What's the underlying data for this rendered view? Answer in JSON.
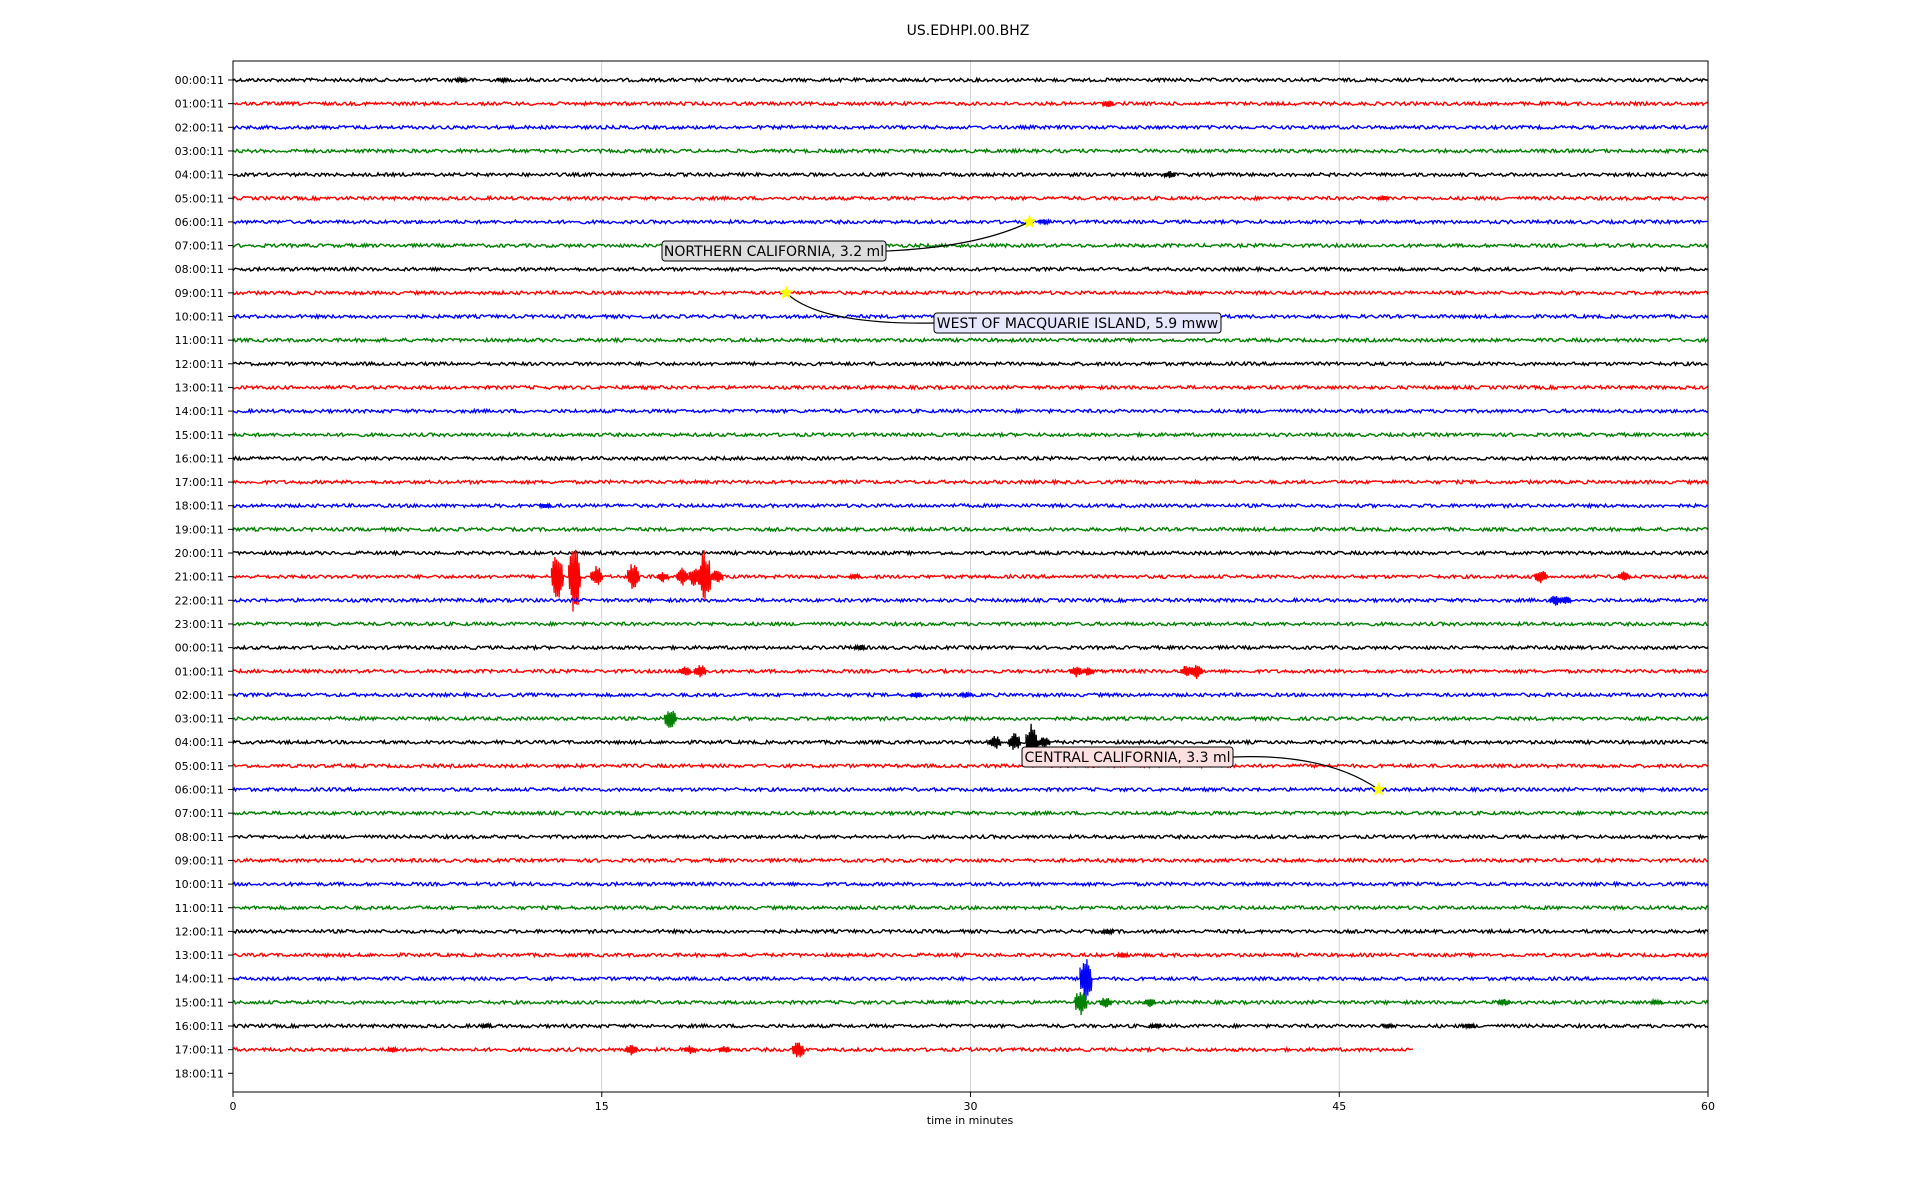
{
  "chart_data": {
    "type": "line",
    "title": "US.EDHPI.00.BHZ",
    "xlabel": "time in minutes",
    "ylabel": "",
    "xlim": [
      0,
      60
    ],
    "xticks": [
      0,
      15,
      30,
      45,
      60
    ],
    "grid_x": true,
    "row_labels": [
      "00:00:11",
      "01:00:11",
      "02:00:11",
      "03:00:11",
      "04:00:11",
      "05:00:11",
      "06:00:11",
      "07:00:11",
      "08:00:11",
      "09:00:11",
      "10:00:11",
      "11:00:11",
      "12:00:11",
      "13:00:11",
      "14:00:11",
      "15:00:11",
      "16:00:11",
      "17:00:11",
      "18:00:11",
      "19:00:11",
      "20:00:11",
      "21:00:11",
      "22:00:11",
      "23:00:11",
      "00:00:11",
      "01:00:11",
      "02:00:11",
      "03:00:11",
      "04:00:11",
      "05:00:11",
      "06:00:11",
      "07:00:11",
      "08:00:11",
      "09:00:11",
      "10:00:11",
      "11:00:11",
      "12:00:11",
      "13:00:11",
      "14:00:11",
      "15:00:11",
      "16:00:11",
      "17:00:11",
      "18:00:11"
    ],
    "trace_colors": [
      "#000000",
      "#ff0000",
      "#0000ff",
      "#008000"
    ],
    "last_trace_end_minute": 48,
    "bursts": [
      {
        "row": 0,
        "t": 9.3,
        "amp": 3
      },
      {
        "row": 0,
        "t": 11.0,
        "amp": 2
      },
      {
        "row": 1,
        "t": 35.6,
        "amp": 4
      },
      {
        "row": 4,
        "t": 38.1,
        "amp": 4
      },
      {
        "row": 5,
        "t": 46.8,
        "amp": 3
      },
      {
        "row": 6,
        "t": 33.0,
        "amp": 3
      },
      {
        "row": 18,
        "t": 12.7,
        "amp": 3
      },
      {
        "row": 21,
        "t": 13.2,
        "amp": 28
      },
      {
        "row": 21,
        "t": 13.9,
        "amp": 44
      },
      {
        "row": 21,
        "t": 14.8,
        "amp": 12
      },
      {
        "row": 21,
        "t": 16.3,
        "amp": 18
      },
      {
        "row": 21,
        "t": 17.5,
        "amp": 6
      },
      {
        "row": 21,
        "t": 18.3,
        "amp": 10
      },
      {
        "row": 21,
        "t": 18.8,
        "amp": 12
      },
      {
        "row": 21,
        "t": 19.2,
        "amp": 30
      },
      {
        "row": 21,
        "t": 19.7,
        "amp": 8
      },
      {
        "row": 21,
        "t": 25.3,
        "amp": 3
      },
      {
        "row": 21,
        "t": 53.2,
        "amp": 8
      },
      {
        "row": 21,
        "t": 56.6,
        "amp": 6
      },
      {
        "row": 22,
        "t": 53.8,
        "amp": 6
      },
      {
        "row": 22,
        "t": 54.2,
        "amp": 5
      },
      {
        "row": 24,
        "t": 25.5,
        "amp": 3
      },
      {
        "row": 25,
        "t": 18.4,
        "amp": 6
      },
      {
        "row": 25,
        "t": 19.0,
        "amp": 8
      },
      {
        "row": 25,
        "t": 34.3,
        "amp": 6
      },
      {
        "row": 25,
        "t": 34.8,
        "amp": 5
      },
      {
        "row": 25,
        "t": 38.8,
        "amp": 7
      },
      {
        "row": 25,
        "t": 39.2,
        "amp": 8
      },
      {
        "row": 26,
        "t": 27.8,
        "amp": 4
      },
      {
        "row": 26,
        "t": 29.8,
        "amp": 3
      },
      {
        "row": 27,
        "t": 17.8,
        "amp": 12
      },
      {
        "row": 28,
        "t": 31.0,
        "amp": 8
      },
      {
        "row": 28,
        "t": 31.8,
        "amp": 10
      },
      {
        "row": 28,
        "t": 32.5,
        "amp": 24
      },
      {
        "row": 28,
        "t": 33.0,
        "amp": 7
      },
      {
        "row": 36,
        "t": 35.6,
        "amp": 3
      },
      {
        "row": 37,
        "t": 36.2,
        "amp": 3
      },
      {
        "row": 38,
        "t": 34.7,
        "amp": 28
      },
      {
        "row": 39,
        "t": 34.5,
        "amp": 16
      },
      {
        "row": 39,
        "t": 35.5,
        "amp": 6
      },
      {
        "row": 39,
        "t": 37.3,
        "amp": 5
      },
      {
        "row": 39,
        "t": 51.7,
        "amp": 4
      },
      {
        "row": 39,
        "t": 57.9,
        "amp": 3
      },
      {
        "row": 40,
        "t": 10.3,
        "amp": 3
      },
      {
        "row": 40,
        "t": 37.5,
        "amp": 3
      },
      {
        "row": 40,
        "t": 47.0,
        "amp": 3
      },
      {
        "row": 40,
        "t": 50.3,
        "amp": 3
      },
      {
        "row": 41,
        "t": 6.5,
        "amp": 3
      },
      {
        "row": 41,
        "t": 16.2,
        "amp": 6
      },
      {
        "row": 41,
        "t": 18.6,
        "amp": 5
      },
      {
        "row": 41,
        "t": 20.0,
        "amp": 4
      },
      {
        "row": 41,
        "t": 23.0,
        "amp": 10
      }
    ],
    "annotations": [
      {
        "text": "NORTHERN CALIFORNIA, 3.2 ml",
        "event_row": 6,
        "event_minute": 32.4,
        "box_color": "#dddddd"
      },
      {
        "text": "WEST OF MACQUARIE ISLAND, 5.9 mww",
        "event_row": 9,
        "event_minute": 22.5,
        "box_color": "#e6e6ff"
      },
      {
        "text": "CENTRAL CALIFORNIA, 3.3 ml",
        "event_row": 30,
        "event_minute": 46.6,
        "box_color": "#ffe0e0"
      }
    ],
    "event_marker_color": "#ffff00"
  }
}
